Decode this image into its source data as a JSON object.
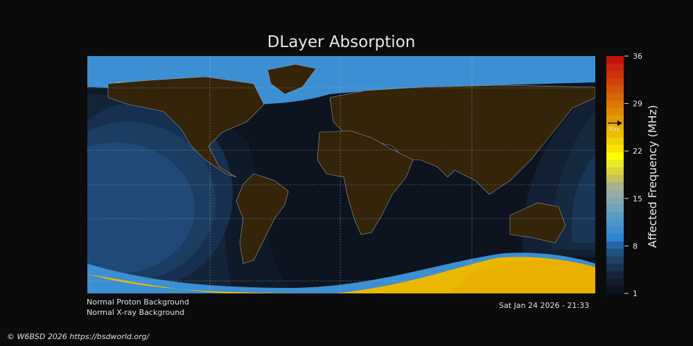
{
  "title": "DLayer Absorption",
  "status": {
    "proton": "Normal Proton Background",
    "xray": "Normal X-ray Background",
    "timestamp": "Sat Jan 24 2026 - 21:33"
  },
  "footer": "© W6BSD 2026 https://bsdworld.org/",
  "colorbar": {
    "label": "Affected Frequency (MHz)",
    "range": [
      1,
      36
    ],
    "ticks": [
      "36",
      "29",
      "22",
      "15",
      "8",
      "1"
    ],
    "max_marker_label": "Max",
    "max_marker_value": 26.3,
    "colors": [
      "#0d121c",
      "#121d2b",
      "#162638",
      "#1a3350",
      "#1e4266",
      "#22527f",
      "#2766a3",
      "#2a86d2",
      "#3d8fcf",
      "#4d96c9",
      "#5a9dc3",
      "#6ea3b9",
      "#85a8b0",
      "#97aca4",
      "#a8b08e",
      "#c5c25b",
      "#dcd43c",
      "#ece92a",
      "#fefe00",
      "#f7e401",
      "#f0d200",
      "#ecbe00",
      "#e8ae01",
      "#e49a03",
      "#e08804",
      "#dc7806",
      "#d96607",
      "#d55509",
      "#d1430a",
      "#cd330b",
      "#c8230c",
      "#c3130a"
    ]
  },
  "colors": {
    "night": "#0d1420",
    "land": "#33240a",
    "coast": "#a0a0a0",
    "grid": "#c8c8c8"
  }
}
